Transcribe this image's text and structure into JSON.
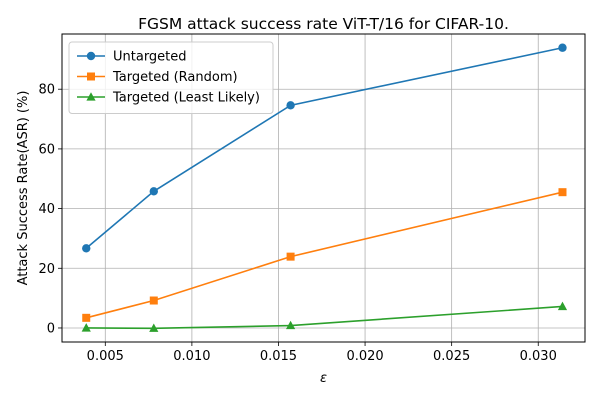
{
  "chart_data": {
    "type": "line",
    "title": "FGSM attack success rate ViT-T/16 for CIFAR-10.",
    "xlabel": "ε",
    "ylabel": "Attack Success Rate(ASR) (%)",
    "x": [
      0.0039,
      0.0078,
      0.0157,
      0.0314
    ],
    "xlim": [
      0.0025,
      0.0327
    ],
    "ylim": [
      -4.7,
      98.5
    ],
    "xticks": [
      0.005,
      0.01,
      0.015,
      0.02,
      0.025,
      0.03
    ],
    "xtick_labels": [
      "0.005",
      "0.010",
      "0.015",
      "0.020",
      "0.025",
      "0.030"
    ],
    "yticks": [
      0,
      20,
      40,
      60,
      80
    ],
    "ytick_labels": [
      "0",
      "20",
      "40",
      "60",
      "80"
    ],
    "grid": true,
    "legend_position": "top-left",
    "series": [
      {
        "name": "Untargeted",
        "color": "#1f77b4",
        "marker": "circle",
        "values": [
          26.7,
          45.8,
          74.6,
          93.9
        ]
      },
      {
        "name": "Targeted (Random)",
        "color": "#ff7f0e",
        "marker": "square",
        "values": [
          3.4,
          9.2,
          23.9,
          45.5
        ]
      },
      {
        "name": "Targeted (Least Likely)",
        "color": "#2ca02c",
        "marker": "triangle",
        "values": [
          0.0,
          -0.1,
          0.8,
          7.2
        ]
      }
    ]
  }
}
